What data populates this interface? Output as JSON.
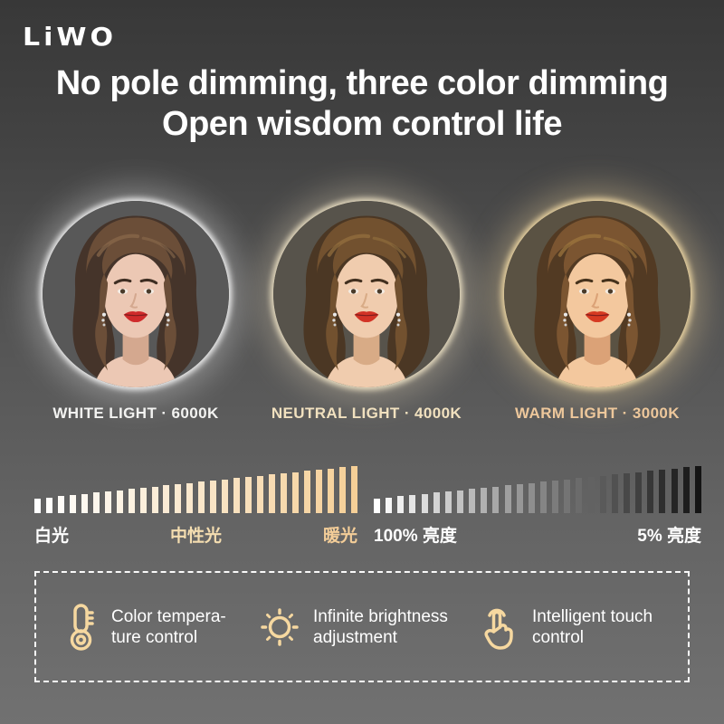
{
  "brand": {
    "logo_text": "LiWO"
  },
  "heading": {
    "line1": "No pole dimming, three color dimming",
    "line2": "Open wisdom control life"
  },
  "portraits": [
    {
      "name": "white",
      "label": "WHITE LIGHT · 6000K",
      "kelvin": "6000K",
      "label_color": "#f3f3f1",
      "glow": "#ffffff"
    },
    {
      "name": "neutral",
      "label": "NEUTRAL LIGHT · 4000K",
      "kelvin": "4000K",
      "label_color": "#f1e1bf",
      "glow": "#f4e6c4"
    },
    {
      "name": "warm",
      "label": "WARM LIGHT · 3000K",
      "kelvin": "3000K",
      "label_color": "#edc79b",
      "glow": "#f3d79c"
    }
  ],
  "chart_data": [
    {
      "type": "bar",
      "title": "color temperature ramp (white to warm)",
      "bar_count": 28,
      "height_min": 16,
      "height_max": 52,
      "color_start": "#ffffff",
      "color_end": "#f5cf97",
      "labels": [
        "白光",
        "中性光",
        "暖光"
      ]
    },
    {
      "type": "bar",
      "title": "brightness ramp (100% to 5%)",
      "bar_count": 28,
      "height_min": 16,
      "height_max": 52,
      "color_start": "#ffffff",
      "color_end": "#141414",
      "labels": [
        "100% 亮度",
        "5% 亮度"
      ]
    }
  ],
  "features": [
    {
      "icon": "thermometer-icon",
      "line1": "Color tempera-",
      "line2": "ture control"
    },
    {
      "icon": "sun-icon",
      "line1": "Infinite brightness",
      "line2": "adjustment"
    },
    {
      "icon": "touch-icon",
      "line1": "Intelligent touch",
      "line2": "control"
    }
  ],
  "colors": {
    "accent": "#f6d8a0",
    "heading_text": "#ffffff",
    "dashed_border": "#fafafa",
    "background_top": "#383838",
    "background_bottom": "#717171"
  }
}
